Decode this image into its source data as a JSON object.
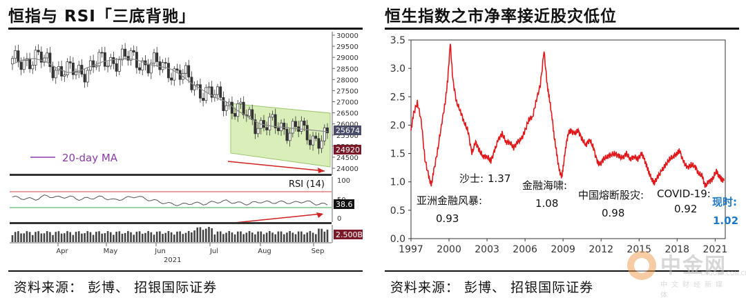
{
  "left": {
    "title": "恒指与 RSI「三底背驰」",
    "source": "资料来源： 彭博、 招银国际证券",
    "legend_label": "20-day MA",
    "price_axis_ticks": [
      "30000",
      "29500",
      "29000",
      "28500",
      "28000",
      "27500",
      "27000",
      "26500",
      "26000",
      "25500",
      "25000",
      "24500",
      "24000"
    ],
    "price_tags": [
      "25674",
      "24920"
    ],
    "rsi_label": "RSI (14)",
    "rsi_axis_ticks": [
      "100",
      "50",
      "0"
    ],
    "rsi_tag": "38.6",
    "volume_tag": "2.500B",
    "month_labels": [
      "Apr",
      "May",
      "Jun",
      "Jul",
      "Aug",
      "Sep"
    ],
    "year_label": "2021",
    "colors": {
      "channel_fill": "#d9eeb8",
      "ma": "#888888",
      "rsi_upper": "#d04040",
      "rsi_lower": "#3aa64a",
      "arrow": "#d02020",
      "tag_bg": "#7a1a28"
    }
  },
  "right": {
    "title": "恒生指数之市净率接近股灾低位",
    "source": "资料来源： 彭博、 招银国际证券",
    "annotations": [
      {
        "label": "亚洲金融风暴:",
        "value": "0.93"
      },
      {
        "label": "沙士:",
        "value": "1.37"
      },
      {
        "label": "金融海啸:",
        "value": "1.08"
      },
      {
        "label": "中国熔断股灾:",
        "value": "0.98"
      },
      {
        "label": "COVID-19:",
        "value": "0.92"
      },
      {
        "label": "现时:",
        "value": "1.02"
      }
    ],
    "watermark": {
      "brand": "中金网",
      "domain": "CNGOLD.COM.CN",
      "tagline": "中文财经新媒体"
    }
  },
  "chart_data": [
    {
      "type": "line",
      "title": "恒生指数之市净率接近股灾低位",
      "xlabel": "",
      "ylabel": "",
      "x_ticks": [
        "1997",
        "2000",
        "2003",
        "2006",
        "2009",
        "2012",
        "2015",
        "2018",
        "2021"
      ],
      "y_ticks": [
        "0.0",
        "0.5",
        "1.0",
        "1.5",
        "2.0",
        "2.5",
        "3.0",
        "3.5"
      ],
      "ylim": [
        0,
        3.5
      ],
      "xlim": [
        1997,
        2021.8
      ],
      "grid": false,
      "series": [
        {
          "color": "#e0181b",
          "x": [
            1997.0,
            1997.2,
            1997.5,
            1997.8,
            1998.1,
            1998.4,
            1998.6,
            1998.8,
            1999.1,
            1999.4,
            1999.7,
            1999.9,
            2000.1,
            2000.3,
            2000.6,
            2000.9,
            2001.2,
            2001.5,
            2001.8,
            2002.1,
            2002.4,
            2002.7,
            2003.0,
            2003.3,
            2003.6,
            2003.9,
            2004.2,
            2004.5,
            2004.8,
            2005.1,
            2005.4,
            2005.7,
            2006.0,
            2006.3,
            2006.6,
            2006.9,
            2007.2,
            2007.5,
            2007.75,
            2007.9,
            2008.1,
            2008.3,
            2008.5,
            2008.7,
            2008.9,
            2009.0,
            2009.2,
            2009.4,
            2009.6,
            2009.9,
            2010.2,
            2010.5,
            2010.8,
            2011.1,
            2011.4,
            2011.7,
            2011.9,
            2012.2,
            2012.5,
            2012.8,
            2013.1,
            2013.4,
            2013.7,
            2014.0,
            2014.3,
            2014.6,
            2014.9,
            2015.2,
            2015.4,
            2015.6,
            2015.8,
            2016.0,
            2016.2,
            2016.5,
            2016.8,
            2017.1,
            2017.4,
            2017.7,
            2018.0,
            2018.2,
            2018.5,
            2018.8,
            2019.1,
            2019.4,
            2019.7,
            2020.0,
            2020.2,
            2020.5,
            2020.8,
            2021.1,
            2021.3,
            2021.5,
            2021.7
          ],
          "values": [
            1.9,
            2.2,
            2.4,
            2.1,
            1.4,
            1.1,
            0.93,
            1.2,
            1.55,
            2.0,
            2.4,
            2.8,
            3.45,
            2.8,
            2.4,
            2.25,
            2.05,
            1.9,
            1.5,
            1.7,
            1.55,
            1.45,
            1.45,
            1.37,
            1.55,
            1.75,
            1.85,
            1.7,
            1.7,
            1.6,
            1.7,
            1.75,
            1.9,
            2.1,
            2.15,
            2.45,
            2.7,
            3.3,
            2.7,
            2.5,
            2.2,
            1.8,
            1.5,
            1.2,
            1.08,
            1.25,
            1.6,
            1.85,
            1.9,
            1.85,
            1.9,
            1.75,
            1.65,
            1.75,
            1.6,
            1.35,
            1.3,
            1.4,
            1.45,
            1.48,
            1.5,
            1.45,
            1.42,
            1.5,
            1.4,
            1.45,
            1.4,
            1.5,
            1.4,
            1.28,
            1.15,
            1.05,
            0.98,
            1.1,
            1.2,
            1.3,
            1.4,
            1.45,
            1.5,
            1.55,
            1.35,
            1.25,
            1.3,
            1.28,
            1.15,
            1.1,
            0.92,
            1.0,
            1.05,
            1.2,
            1.1,
            1.05,
            1.02
          ]
        }
      ]
    },
    {
      "type": "line",
      "title": "恒指与 RSI「三底背驰」",
      "xlabel": "",
      "ylabel": "",
      "x_ticks": [
        "Apr",
        "May",
        "Jun",
        "Jul",
        "Aug",
        "Sep"
      ],
      "y_ticks": [
        "30000",
        "29500",
        "29000",
        "28500",
        "28000",
        "27500",
        "27000",
        "26500",
        "26000",
        "25500",
        "25000",
        "24500",
        "24000"
      ],
      "ylim": [
        24000,
        30000
      ],
      "grid": false,
      "series": [
        {
          "name": "20-day MA",
          "color": "#888888",
          "values": [
            28700,
            28900,
            28950,
            28800,
            28500,
            28300,
            28400,
            28600,
            28800,
            28900,
            28950,
            28900,
            28700,
            28600,
            28500,
            28200,
            27800,
            27500,
            27200,
            27000,
            26600,
            26300,
            26000,
            25900,
            25850,
            25800,
            25750,
            25700,
            25650
          ]
        },
        {
          "name": "RSI (14)",
          "color": "#555555",
          "values": [
            55,
            52,
            50,
            58,
            54,
            56,
            50,
            53,
            55,
            48,
            52,
            57,
            50,
            45,
            40,
            38,
            42,
            40,
            44,
            46,
            42,
            40,
            45,
            43,
            44,
            42,
            46,
            40,
            38.6
          ]
        }
      ]
    }
  ]
}
